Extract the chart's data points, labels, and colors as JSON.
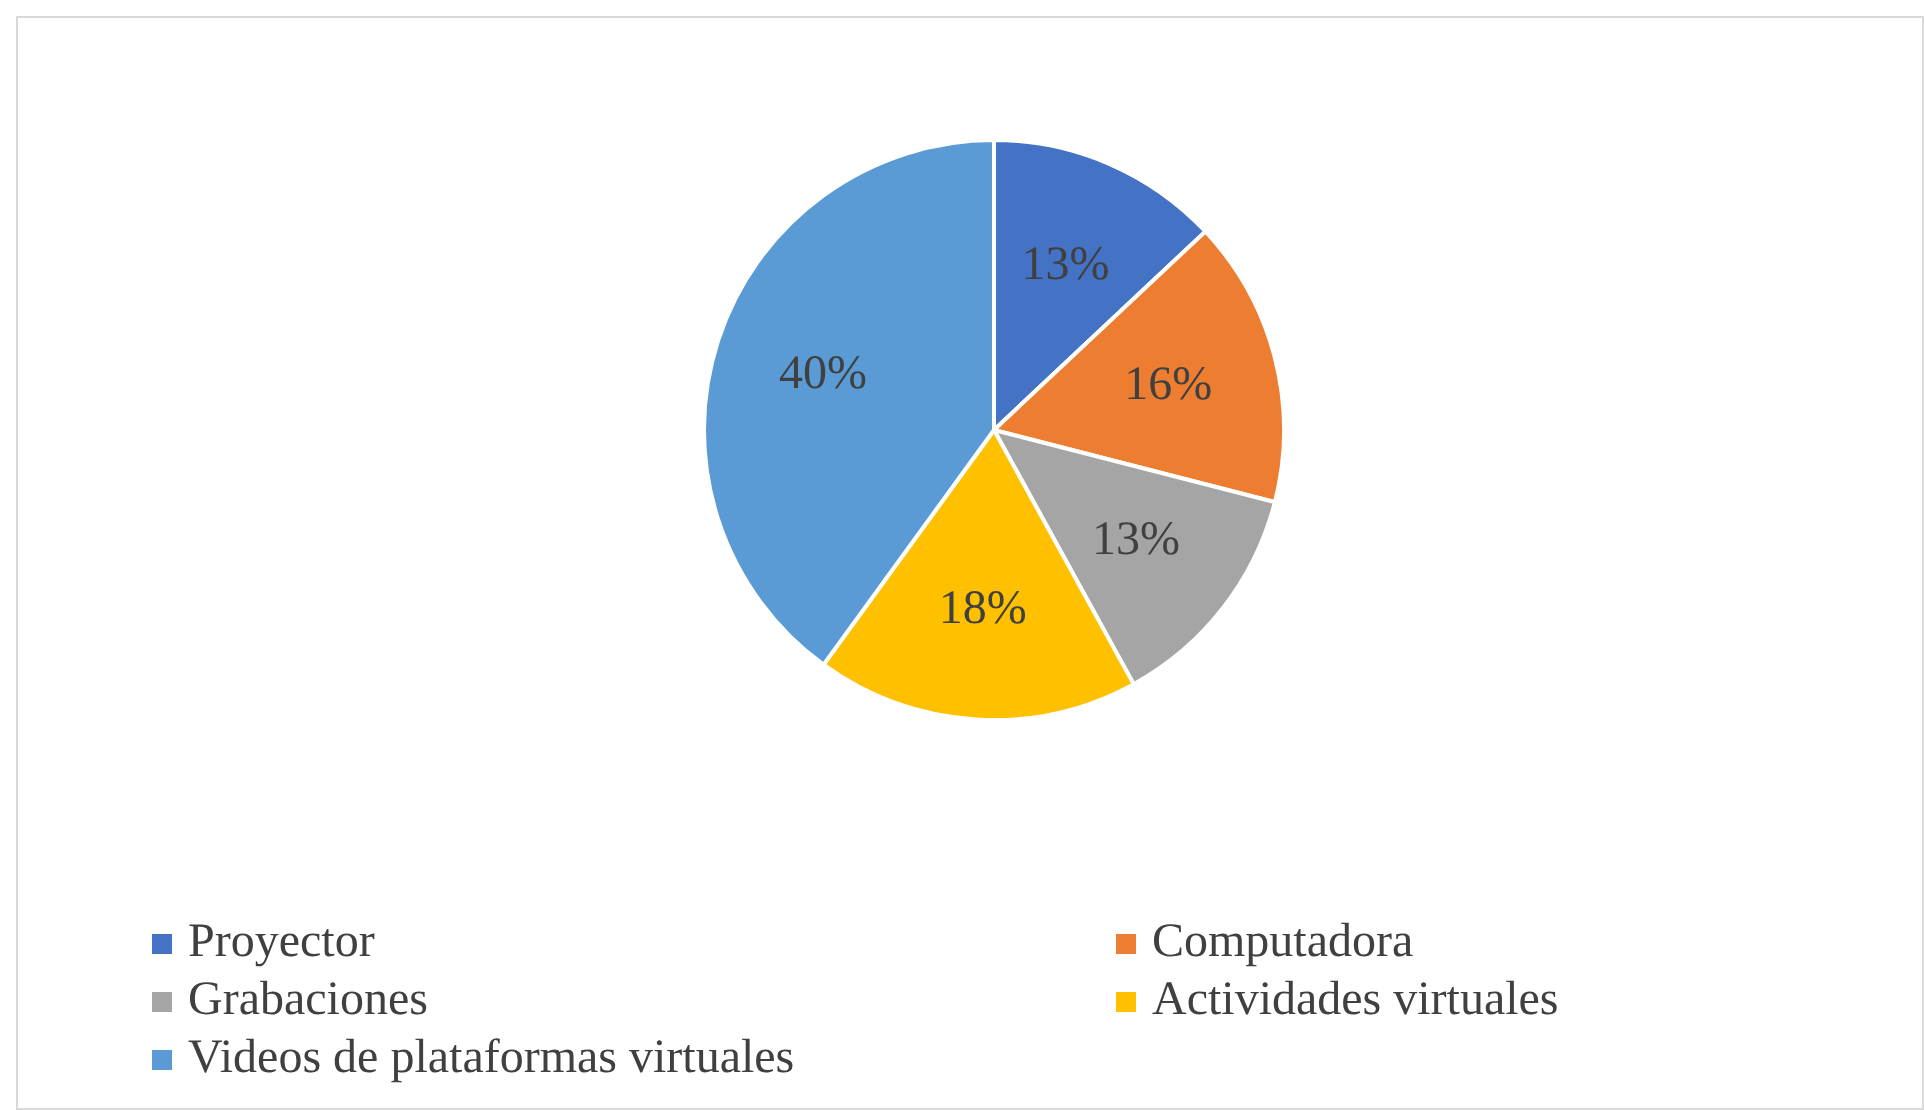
{
  "chart_data": {
    "type": "pie",
    "categories": [
      "Proyector",
      "Computadora",
      "Grabaciones",
      "Actividades virtuales",
      "Videos de plataformas virtuales"
    ],
    "values": [
      13,
      16,
      13,
      18,
      40
    ],
    "colors": [
      "#4472c4",
      "#ed7d31",
      "#a5a5a5",
      "#ffc000",
      "#5b9bd5"
    ],
    "value_labels": [
      "13%",
      "16%",
      "13%",
      "18%",
      "40%"
    ],
    "legend": "bottom"
  }
}
